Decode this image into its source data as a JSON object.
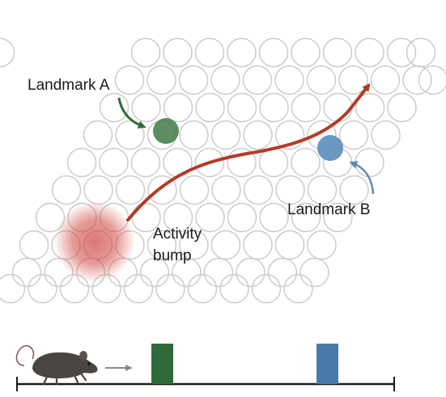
{
  "labels": {
    "landmark_a": "Landmark A",
    "landmark_b": "Landmark B",
    "activity_line1": "Activity",
    "activity_line2": "bump"
  },
  "colors": {
    "grid_stroke": "#c9c9c9",
    "landmark_a": "#3f7a47",
    "landmark_a_arrow": "#2f6b3a",
    "landmark_b": "#5b8cbd",
    "landmark_b_arrow": "#5b8cbd",
    "trajectory": "#b53a26",
    "activity_bump": "#d14a44",
    "track_marker_a": "#2f6b3a",
    "track_marker_b": "#4a79a8",
    "track_line": "#1a1a1a",
    "motion_arrow": "#8a8a8a",
    "mouse": "#4a4543"
  },
  "icons": {
    "mouse": "mouse-icon",
    "motion": "arrow-right-icon"
  }
}
